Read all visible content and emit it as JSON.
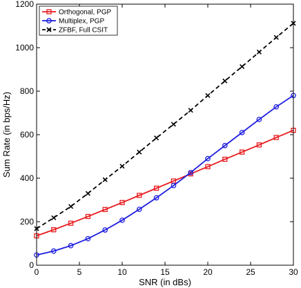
{
  "chart_data": {
    "type": "line",
    "xlabel": "SNR (in dBs)",
    "ylabel": "Sum Rate (in bps/Hz)",
    "xlim": [
      0,
      30
    ],
    "ylim": [
      0,
      1200
    ],
    "xticks": [
      0,
      5,
      10,
      15,
      20,
      25,
      30
    ],
    "yticks": [
      0,
      200,
      400,
      600,
      800,
      1000,
      1200
    ],
    "grid": false,
    "legend_position": "top-left",
    "x": [
      0,
      2,
      4,
      6,
      8,
      10,
      12,
      14,
      16,
      18,
      20,
      22,
      24,
      26,
      28,
      30
    ],
    "series": [
      {
        "name": "Orthogonal, PGP",
        "color": "#e8191d",
        "line": "solid",
        "marker": "square",
        "values": [
          135,
          163,
          193,
          224,
          256,
          288,
          321,
          354,
          387,
          420,
          453,
          487,
          520,
          553,
          587,
          620
        ]
      },
      {
        "name": "Multiplex, PGP",
        "color": "#1c1ce0",
        "line": "solid",
        "marker": "circle",
        "values": [
          47,
          65,
          90,
          122,
          162,
          207,
          257,
          310,
          366,
          426,
          490,
          550,
          610,
          670,
          728,
          780
        ]
      },
      {
        "name": "ZFBF, Full CSIT",
        "color": "#000000",
        "line": "dashed",
        "marker": "x",
        "values": [
          168,
          218,
          270,
          330,
          393,
          455,
          520,
          585,
          648,
          712,
          780,
          847,
          913,
          980,
          1047,
          1112
        ]
      }
    ]
  }
}
